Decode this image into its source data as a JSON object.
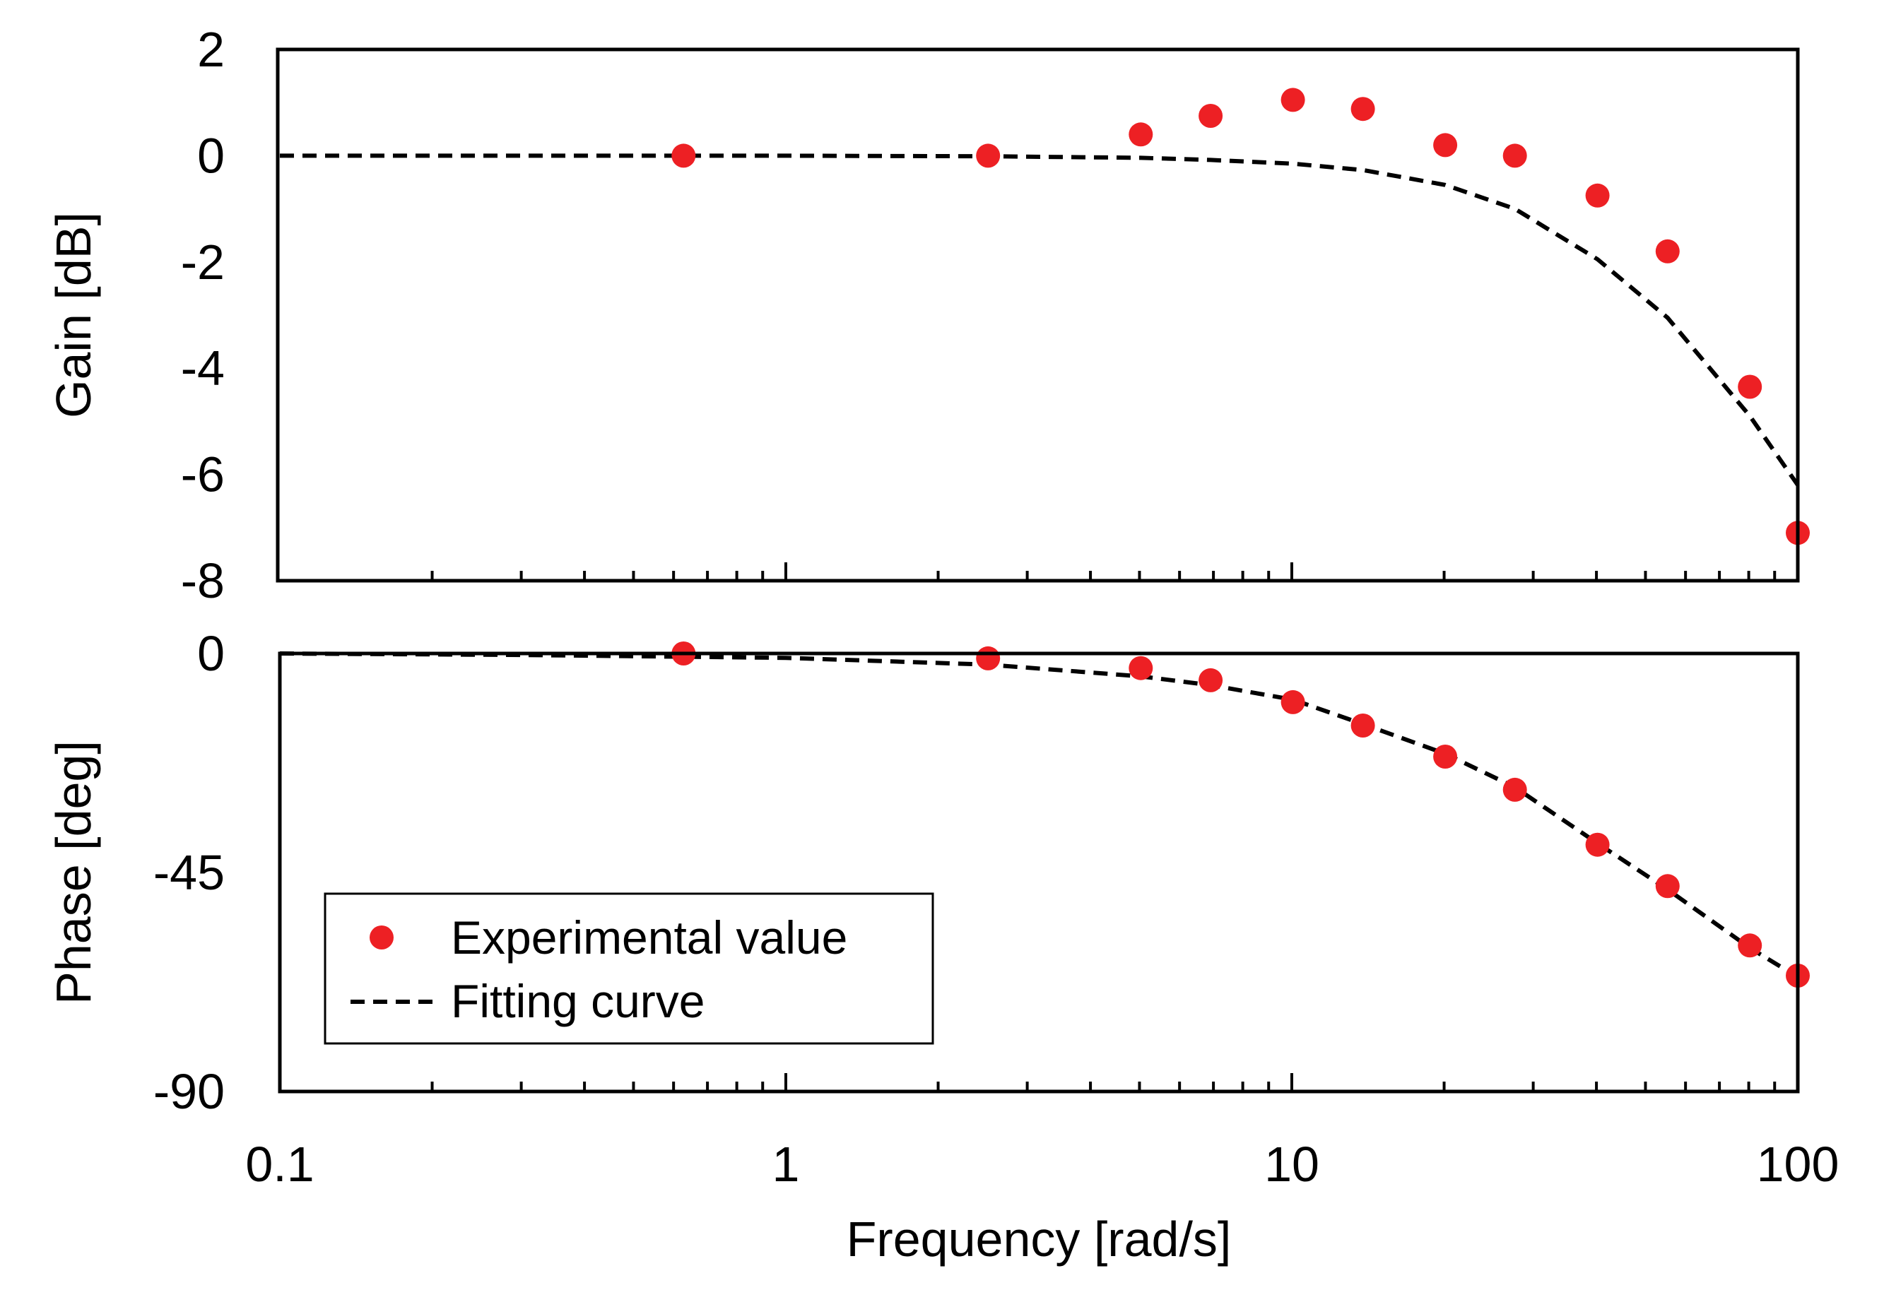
{
  "chart_data": [
    {
      "type": "scatter",
      "panel": "gain",
      "ylabel": "Gain [dB]",
      "xscale": "log",
      "xlim": [
        0.1,
        100
      ],
      "ylim": [
        -8,
        2
      ],
      "yticks": [
        2,
        0,
        -2,
        -4,
        -6,
        -8
      ],
      "ytick_labels": [
        "2",
        "0",
        "-2",
        "-4",
        "-6",
        "-8"
      ],
      "grid": false,
      "series": [
        {
          "name": "Experimental value",
          "style": "marker",
          "color": "#ed2024",
          "points": [
            {
              "x": 0.628,
              "y": 0.0
            },
            {
              "x": 2.51,
              "y": 0.0
            },
            {
              "x": 5.03,
              "y": 0.4
            },
            {
              "x": 6.91,
              "y": 0.75
            },
            {
              "x": 10.05,
              "y": 1.05
            },
            {
              "x": 13.82,
              "y": 0.88
            },
            {
              "x": 20.1,
              "y": 0.2
            },
            {
              "x": 27.6,
              "y": 0.0
            },
            {
              "x": 40.2,
              "y": -0.75
            },
            {
              "x": 55.3,
              "y": -1.8
            },
            {
              "x": 80.4,
              "y": -4.35
            },
            {
              "x": 100.0,
              "y": -7.1
            }
          ]
        },
        {
          "name": "Fitting curve",
          "style": "dashed",
          "color": "#000000",
          "points": [
            {
              "x": 0.1,
              "y": 0.0
            },
            {
              "x": 0.628,
              "y": 0.0
            },
            {
              "x": 1.0,
              "y": 0.0
            },
            {
              "x": 2.51,
              "y": -0.01
            },
            {
              "x": 5.03,
              "y": -0.04
            },
            {
              "x": 6.91,
              "y": -0.08
            },
            {
              "x": 10.05,
              "y": -0.15
            },
            {
              "x": 13.82,
              "y": -0.27
            },
            {
              "x": 20.1,
              "y": -0.55
            },
            {
              "x": 27.6,
              "y": -1.0
            },
            {
              "x": 40.2,
              "y": -1.95
            },
            {
              "x": 55.3,
              "y": -3.05
            },
            {
              "x": 80.4,
              "y": -4.9
            },
            {
              "x": 100.0,
              "y": -6.2
            }
          ]
        }
      ]
    },
    {
      "type": "scatter",
      "panel": "phase",
      "ylabel": "Phase [deg]",
      "xlabel": "Frequency [rad/s]",
      "xscale": "log",
      "xlim": [
        0.1,
        100
      ],
      "ylim": [
        -90,
        0
      ],
      "xticks": [
        0.1,
        1,
        10,
        100
      ],
      "xtick_labels": [
        "0.1",
        "1",
        "10",
        "100"
      ],
      "yticks": [
        0,
        -45,
        -90
      ],
      "ytick_labels": [
        "0",
        "-45",
        "-90"
      ],
      "grid": false,
      "legend": {
        "position": "lower-left",
        "entries": [
          "Experimental value",
          "Fitting curve"
        ]
      },
      "series": [
        {
          "name": "Experimental value",
          "style": "marker",
          "color": "#ed2024",
          "points": [
            {
              "x": 0.628,
              "y": 0.0
            },
            {
              "x": 2.51,
              "y": -1.0
            },
            {
              "x": 5.03,
              "y": -3.0
            },
            {
              "x": 6.91,
              "y": -5.5
            },
            {
              "x": 10.05,
              "y": -10.0
            },
            {
              "x": 13.82,
              "y": -14.8
            },
            {
              "x": 20.1,
              "y": -21.2
            },
            {
              "x": 27.6,
              "y": -28.0
            },
            {
              "x": 40.2,
              "y": -39.3
            },
            {
              "x": 55.3,
              "y": -47.8
            },
            {
              "x": 80.4,
              "y": -60.0
            },
            {
              "x": 100.0,
              "y": -66.2
            }
          ]
        },
        {
          "name": "Fitting curve",
          "style": "dashed",
          "color": "#000000",
          "points": [
            {
              "x": 0.1,
              "y": 0.0
            },
            {
              "x": 0.3,
              "y": -0.3
            },
            {
              "x": 1.0,
              "y": -0.9
            },
            {
              "x": 2.51,
              "y": -2.3
            },
            {
              "x": 5.03,
              "y": -4.7
            },
            {
              "x": 6.91,
              "y": -6.5
            },
            {
              "x": 10.05,
              "y": -9.5
            },
            {
              "x": 13.82,
              "y": -14.5
            },
            {
              "x": 20.1,
              "y": -20.6
            },
            {
              "x": 27.6,
              "y": -27.5
            },
            {
              "x": 40.2,
              "y": -39.0
            },
            {
              "x": 55.3,
              "y": -48.5
            },
            {
              "x": 80.4,
              "y": -60.5
            },
            {
              "x": 100.0,
              "y": -66.5
            }
          ]
        }
      ]
    }
  ]
}
